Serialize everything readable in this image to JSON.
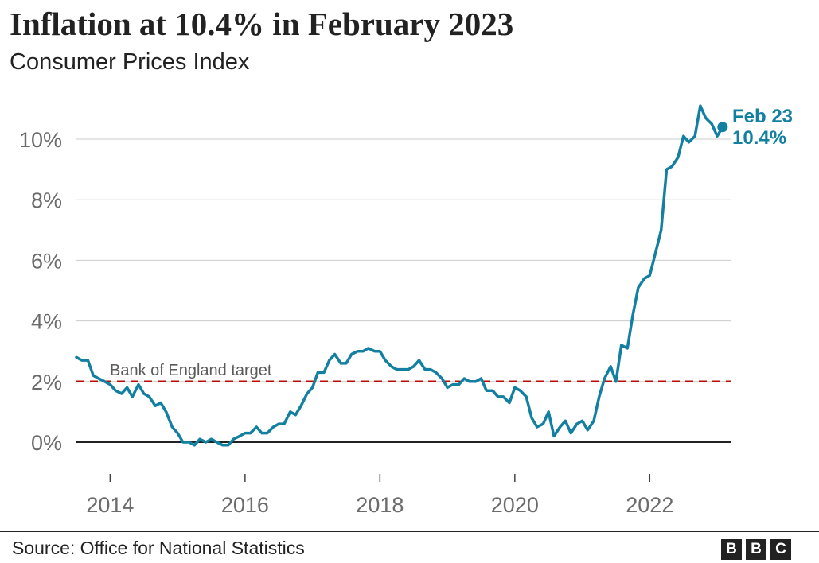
{
  "chart_data": {
    "type": "line",
    "title": "Inflation at 10.4% in February 2023",
    "subtitle": "Consumer Prices Index",
    "ylim": [
      -1,
      11
    ],
    "yticks": [
      0,
      2,
      4,
      6,
      8,
      10
    ],
    "ytick_labels": [
      "0%",
      "2%",
      "4%",
      "6%",
      "8%",
      "10%"
    ],
    "xlim": [
      2013.5,
      2023.2
    ],
    "xticks": [
      2014,
      2016,
      2018,
      2020,
      2022
    ],
    "xtick_labels": [
      "2014",
      "2016",
      "2018",
      "2020",
      "2022"
    ],
    "grid": true,
    "series": [
      {
        "color": "#1380a1",
        "x": [
          2013.5,
          2013.58,
          2013.67,
          2013.75,
          2013.83,
          2013.92,
          2014.0,
          2014.08,
          2014.17,
          2014.25,
          2014.33,
          2014.42,
          2014.5,
          2014.58,
          2014.67,
          2014.75,
          2014.83,
          2014.92,
          2015.0,
          2015.08,
          2015.17,
          2015.25,
          2015.33,
          2015.42,
          2015.5,
          2015.58,
          2015.67,
          2015.75,
          2015.83,
          2015.92,
          2016.0,
          2016.08,
          2016.17,
          2016.25,
          2016.33,
          2016.42,
          2016.5,
          2016.58,
          2016.67,
          2016.75,
          2016.83,
          2016.92,
          2017.0,
          2017.08,
          2017.17,
          2017.25,
          2017.33,
          2017.42,
          2017.5,
          2017.58,
          2017.67,
          2017.75,
          2017.83,
          2017.92,
          2018.0,
          2018.08,
          2018.17,
          2018.25,
          2018.33,
          2018.42,
          2018.5,
          2018.58,
          2018.67,
          2018.75,
          2018.83,
          2018.92,
          2019.0,
          2019.08,
          2019.17,
          2019.25,
          2019.33,
          2019.42,
          2019.5,
          2019.58,
          2019.67,
          2019.75,
          2019.83,
          2019.92,
          2020.0,
          2020.08,
          2020.17,
          2020.25,
          2020.33,
          2020.42,
          2020.5,
          2020.58,
          2020.67,
          2020.75,
          2020.83,
          2020.92,
          2021.0,
          2021.08,
          2021.17,
          2021.25,
          2021.33,
          2021.42,
          2021.5,
          2021.58,
          2021.67,
          2021.75,
          2021.83,
          2021.92,
          2022.0,
          2022.08,
          2022.17,
          2022.25,
          2022.33,
          2022.42,
          2022.5,
          2022.58,
          2022.67,
          2022.75,
          2022.83,
          2022.92,
          2023.0,
          2023.08
        ],
        "values": [
          2.8,
          2.7,
          2.7,
          2.2,
          2.1,
          2.0,
          1.9,
          1.7,
          1.6,
          1.8,
          1.5,
          1.9,
          1.6,
          1.5,
          1.2,
          1.3,
          1.0,
          0.5,
          0.3,
          0.0,
          0.0,
          -0.1,
          0.1,
          0.0,
          0.1,
          0.0,
          -0.1,
          -0.1,
          0.1,
          0.2,
          0.3,
          0.3,
          0.5,
          0.3,
          0.3,
          0.5,
          0.6,
          0.6,
          1.0,
          0.9,
          1.2,
          1.6,
          1.8,
          2.3,
          2.3,
          2.7,
          2.9,
          2.6,
          2.6,
          2.9,
          3.0,
          3.0,
          3.1,
          3.0,
          3.0,
          2.7,
          2.5,
          2.4,
          2.4,
          2.4,
          2.5,
          2.7,
          2.4,
          2.4,
          2.3,
          2.1,
          1.8,
          1.9,
          1.9,
          2.1,
          2.0,
          2.0,
          2.1,
          1.7,
          1.7,
          1.5,
          1.5,
          1.3,
          1.8,
          1.7,
          1.5,
          0.8,
          0.5,
          0.6,
          1.0,
          0.2,
          0.5,
          0.7,
          0.3,
          0.6,
          0.7,
          0.4,
          0.7,
          1.5,
          2.1,
          2.5,
          2.0,
          3.2,
          3.1,
          4.2,
          5.1,
          5.4,
          5.5,
          6.2,
          7.0,
          9.0,
          9.1,
          9.4,
          10.1,
          9.9,
          10.1,
          11.1,
          10.7,
          10.5,
          10.1,
          10.4
        ]
      }
    ],
    "reference_line": {
      "value": 2,
      "label": "Bank of England target",
      "color": "#b80c09"
    },
    "end_label": {
      "line1": "Feb 23",
      "line2": "10.4%"
    }
  },
  "footer": {
    "source": "Source: Office for National Statistics",
    "logo_letters": [
      "B",
      "B",
      "C"
    ]
  }
}
